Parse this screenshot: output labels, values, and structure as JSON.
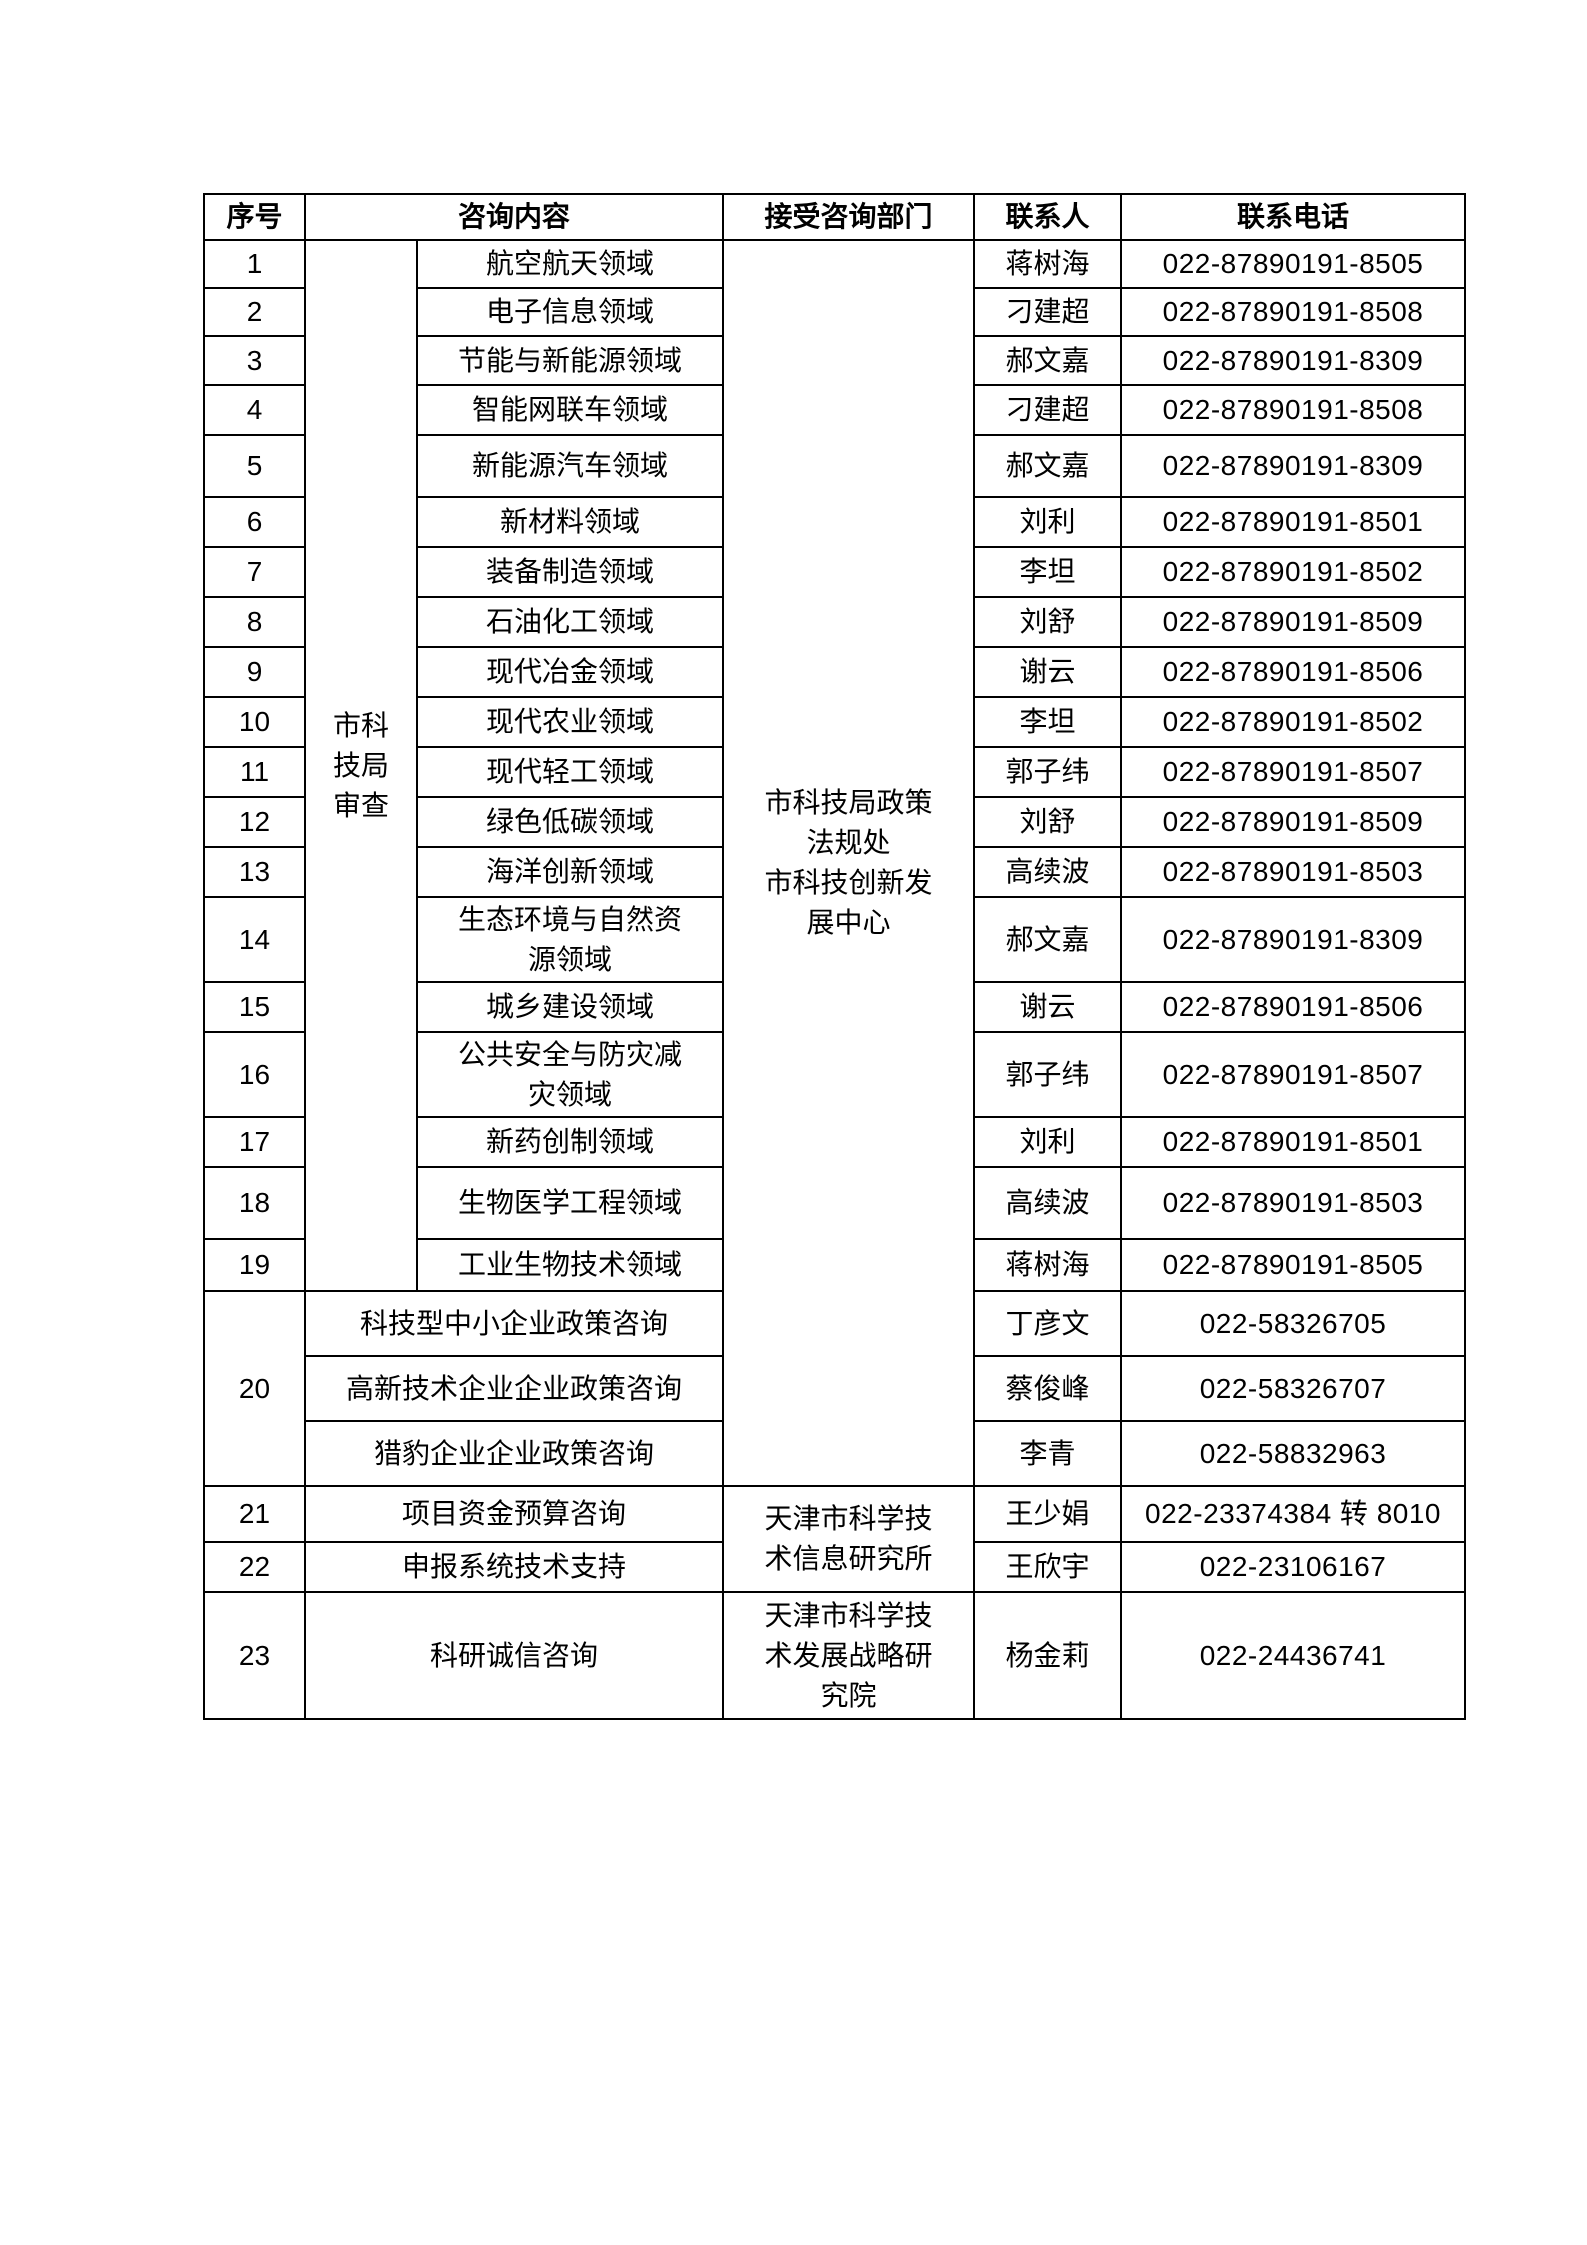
{
  "headers": [
    "序号",
    "咨询内容",
    "接受咨询部门",
    "联系人",
    "联系电话"
  ],
  "review_group": "市科\n技局\n审查",
  "dept_main": "市科技局政策\n法规处\n市科技创新发\n展中心",
  "dept_info": "天津市科学技\n术信息研究所",
  "dept_strategy": "天津市科学技\n术发展战略研\n究院",
  "rows": [
    {
      "no": "1",
      "content": "航空航天领域",
      "contact": "蒋树海",
      "phone": "022-87890191-8505"
    },
    {
      "no": "2",
      "content": "电子信息领域",
      "contact": "刁建超",
      "phone": "022-87890191-8508"
    },
    {
      "no": "3",
      "content": "节能与新能源领域",
      "contact": "郝文嘉",
      "phone": "022-87890191-8309"
    },
    {
      "no": "4",
      "content": "智能网联车领域",
      "contact": "刁建超",
      "phone": "022-87890191-8508"
    },
    {
      "no": "5",
      "content": "新能源汽车领域",
      "contact": "郝文嘉",
      "phone": "022-87890191-8309"
    },
    {
      "no": "6",
      "content": "新材料领域",
      "contact": "刘利",
      "phone": "022-87890191-8501"
    },
    {
      "no": "7",
      "content": "装备制造领域",
      "contact": "李坦",
      "phone": "022-87890191-8502"
    },
    {
      "no": "8",
      "content": "石油化工领域",
      "contact": "刘舒",
      "phone": "022-87890191-8509"
    },
    {
      "no": "9",
      "content": "现代冶金领域",
      "contact": "谢云",
      "phone": "022-87890191-8506"
    },
    {
      "no": "10",
      "content": "现代农业领域",
      "contact": "李坦",
      "phone": "022-87890191-8502"
    },
    {
      "no": "11",
      "content": "现代轻工领域",
      "contact": "郭子纬",
      "phone": "022-87890191-8507"
    },
    {
      "no": "12",
      "content": "绿色低碳领域",
      "contact": "刘舒",
      "phone": "022-87890191-8509"
    },
    {
      "no": "13",
      "content": "海洋创新领域",
      "contact": "高续波",
      "phone": "022-87890191-8503"
    },
    {
      "no": "14",
      "content": "生态环境与自然资\n源领域",
      "contact": "郝文嘉",
      "phone": "022-87890191-8309"
    },
    {
      "no": "15",
      "content": "城乡建设领域",
      "contact": "谢云",
      "phone": "022-87890191-8506"
    },
    {
      "no": "16",
      "content": "公共安全与防灾减\n灾领域",
      "contact": "郭子纬",
      "phone": "022-87890191-8507"
    },
    {
      "no": "17",
      "content": "新药创制领域",
      "contact": "刘利",
      "phone": "022-87890191-8501"
    },
    {
      "no": "18",
      "content": "生物医学工程领域",
      "contact": "高续波",
      "phone": "022-87890191-8503"
    },
    {
      "no": "19",
      "content": "工业生物技术领域",
      "contact": "蒋树海",
      "phone": "022-87890191-8505"
    }
  ],
  "row20": {
    "no": "20",
    "items": [
      {
        "content": "科技型中小企业政策咨询",
        "contact": "丁彦文",
        "phone": "022-58326705"
      },
      {
        "content": "高新技术企业企业政策咨询",
        "contact": "蔡俊峰",
        "phone": "022-58326707"
      },
      {
        "content": "猎豹企业企业政策咨询",
        "contact": "李青",
        "phone": "022-58832963"
      }
    ]
  },
  "rows_tail": [
    {
      "no": "21",
      "content": "项目资金预算咨询",
      "contact": "王少娟",
      "phone": "022-23374384 转 8010"
    },
    {
      "no": "22",
      "content": "申报系统技术支持",
      "contact": "王欣宇",
      "phone": "022-23106167"
    },
    {
      "no": "23",
      "content": "科研诚信咨询",
      "contact": "杨金莉",
      "phone": "022-24436741"
    }
  ]
}
